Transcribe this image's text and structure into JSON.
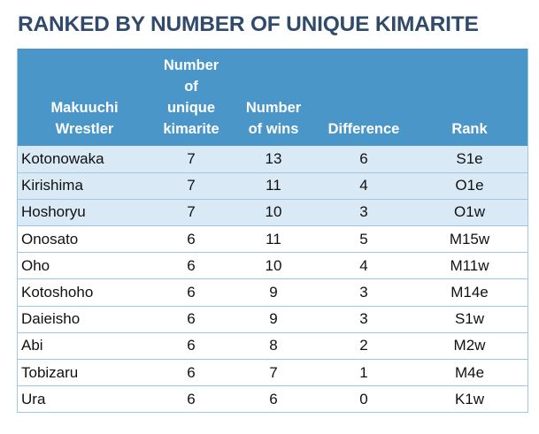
{
  "title": "RANKED BY NUMBER OF UNIQUE KIMARITE",
  "columns": [
    {
      "lines": [
        "Makuuchi",
        "Wrestler"
      ]
    },
    {
      "lines": [
        "Number",
        "of",
        "unique",
        "kimarite"
      ]
    },
    {
      "lines": [
        "Number",
        "of wins"
      ]
    },
    {
      "lines": [
        "Difference"
      ]
    },
    {
      "lines": [
        "Rank"
      ]
    }
  ],
  "rows": [
    {
      "wrestler": "Kotonowaka",
      "unique_kimarite": "7",
      "wins": "13",
      "difference": "6",
      "rank": "S1e",
      "shaded": true
    },
    {
      "wrestler": "Kirishima",
      "unique_kimarite": "7",
      "wins": "11",
      "difference": "4",
      "rank": "O1e",
      "shaded": true
    },
    {
      "wrestler": "Hoshoryu",
      "unique_kimarite": "7",
      "wins": "10",
      "difference": "3",
      "rank": "O1w",
      "shaded": true
    },
    {
      "wrestler": "Onosato",
      "unique_kimarite": "6",
      "wins": "11",
      "difference": "5",
      "rank": "M15w",
      "shaded": false
    },
    {
      "wrestler": "Oho",
      "unique_kimarite": "6",
      "wins": "10",
      "difference": "4",
      "rank": "M11w",
      "shaded": false
    },
    {
      "wrestler": "Kotoshoho",
      "unique_kimarite": "6",
      "wins": "9",
      "difference": "3",
      "rank": "M14e",
      "shaded": false
    },
    {
      "wrestler": "Daieisho",
      "unique_kimarite": "6",
      "wins": "9",
      "difference": "3",
      "rank": "S1w",
      "shaded": false
    },
    {
      "wrestler": "Abi",
      "unique_kimarite": "6",
      "wins": "8",
      "difference": "2",
      "rank": "M2w",
      "shaded": false
    },
    {
      "wrestler": "Tobizaru",
      "unique_kimarite": "6",
      "wins": "7",
      "difference": "1",
      "rank": "M4e",
      "shaded": false
    },
    {
      "wrestler": "Ura",
      "unique_kimarite": "6",
      "wins": "6",
      "difference": "0",
      "rank": "K1w",
      "shaded": false
    }
  ],
  "colors": {
    "title": "#2f4a6a",
    "header_bg": "#4a96c9",
    "header_text": "#ffffff",
    "shaded_row": "#d9e9f5",
    "row_border": "#9fc6e2"
  }
}
